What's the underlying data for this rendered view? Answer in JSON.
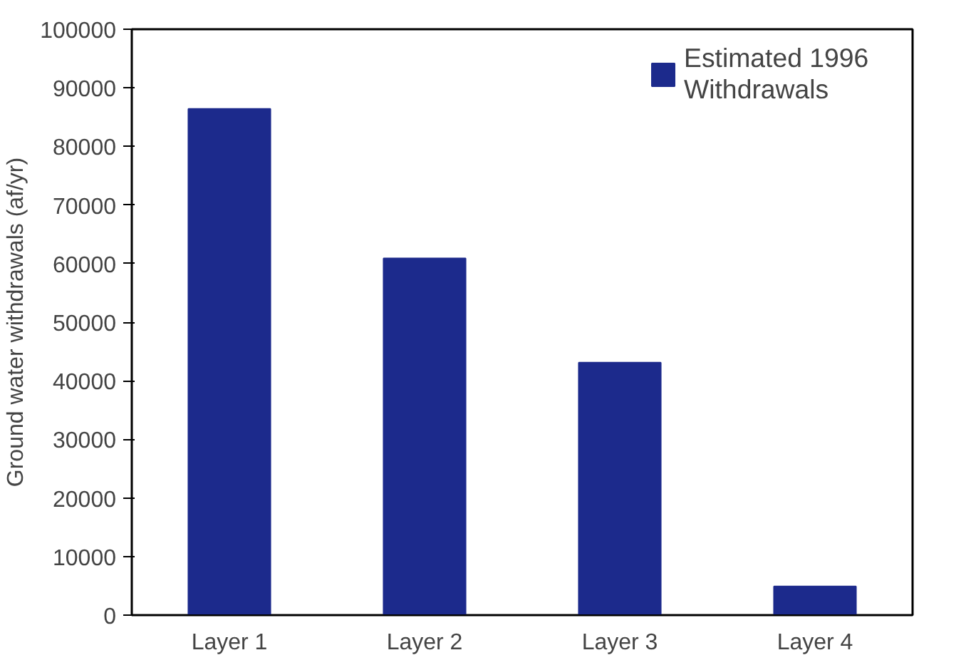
{
  "chart_data": {
    "type": "bar",
    "ylabel": "Ground water withdrawals (af/yr)",
    "categories": [
      "Layer 1",
      "Layer 2",
      "Layer 3",
      "Layer 4"
    ],
    "series": [
      {
        "name": "Estimated 1996 Withdrawals",
        "color": "#1c2a8c",
        "values": [
          86400,
          60900,
          43100,
          4900
        ]
      }
    ],
    "ylim": [
      0,
      100000
    ],
    "yticks": [
      0,
      10000,
      20000,
      30000,
      40000,
      50000,
      60000,
      70000,
      80000,
      90000,
      100000
    ],
    "legend": "top right",
    "grid": false
  }
}
